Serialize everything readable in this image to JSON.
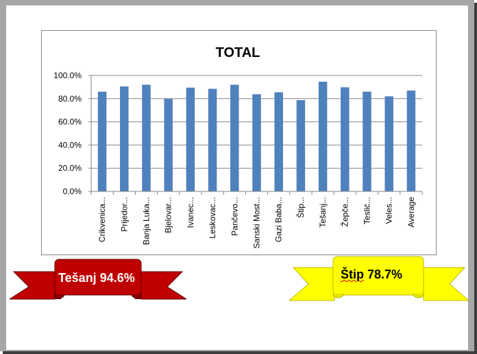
{
  "chart_data": {
    "type": "bar",
    "title": "TOTAL",
    "categories": [
      "Crikvenica...",
      "Prijedor...",
      "Banja Luka...",
      "Bjelovar...",
      "Ivanec...",
      "Leskovac...",
      "Pančevo...",
      "Sanski Most...",
      "Gazi Baba...",
      "Štip...",
      "Tešanj...",
      "Žepče...",
      "Teslić...",
      "Veles...",
      "Average"
    ],
    "values": [
      86.0,
      90.5,
      92.0,
      79.8,
      89.5,
      88.5,
      92.0,
      83.8,
      85.5,
      78.7,
      94.6,
      89.8,
      86.0,
      82.0,
      87.0
    ],
    "ylim": [
      0,
      100
    ],
    "yticks": [
      "0.0%",
      "20.0%",
      "40.0%",
      "60.0%",
      "80.0%",
      "100.0%"
    ],
    "ytick_values": [
      0,
      20,
      40,
      60,
      80,
      100
    ],
    "grid": true,
    "bar_color": "#4f81bd",
    "grid_color": "#868686"
  },
  "annotations": {
    "left_ribbon": {
      "place": "Tešanj",
      "value": "94.6%",
      "color": "#c00000",
      "text_color": "#ffffff"
    },
    "right_ribbon": {
      "place": "Štip",
      "value": "78.7%",
      "color": "#ffff00",
      "text_color": "#000000"
    }
  }
}
